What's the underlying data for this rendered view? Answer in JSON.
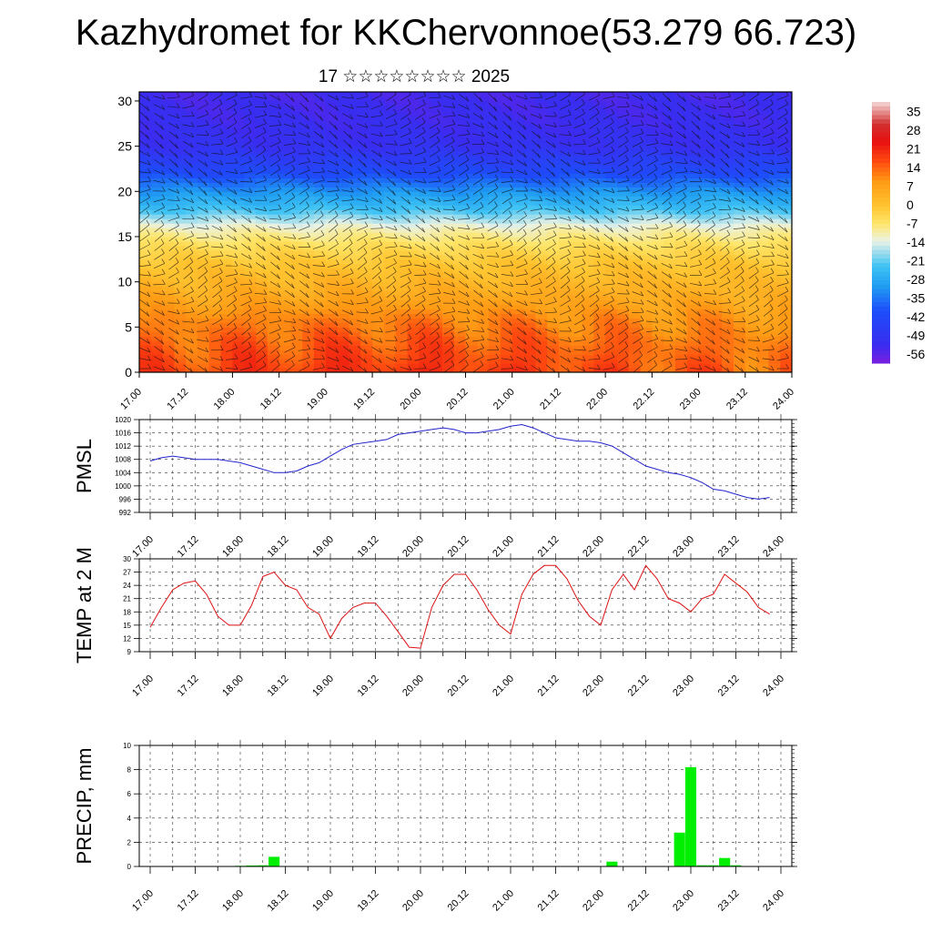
{
  "title": "Kazhydromet for KKChervonnoe(53.279 66.723)",
  "subtitle": "17 ☆☆☆☆☆☆☆☆ 2025",
  "time_labels": [
    "17.00",
    "17.12",
    "18.00",
    "18.12",
    "19.00",
    "19.12",
    "20.00",
    "20.12",
    "21.00",
    "21.12",
    "22.00",
    "22.12",
    "23.00",
    "23.12",
    "24.00"
  ],
  "colors": {
    "pmsl_line": "#2222cc",
    "temp_line": "#dd1111",
    "precip_bar": "#00ee00",
    "grid": "#333333"
  },
  "chart_data": [
    {
      "type": "heatmap",
      "title": "Kazhydromet for KKChervonnoe(53.279 66.723)",
      "subtitle": "17 ☆☆☆☆☆☆☆☆ 2025",
      "xlabel": "",
      "ylabel": "",
      "ylim": [
        0,
        31
      ],
      "yticks": [
        0,
        5,
        10,
        15,
        20,
        25,
        30
      ],
      "y_tick_labels": [
        "0",
        "5",
        "10",
        "15",
        "20",
        "25",
        "30"
      ],
      "x_categories": [
        "17.00",
        "17.12",
        "18.00",
        "18.12",
        "19.00",
        "19.12",
        "20.00",
        "20.12",
        "21.00",
        "21.12",
        "22.00",
        "22.12",
        "23.00",
        "23.12",
        "24.00"
      ],
      "colorbar": {
        "labels": [
          "35",
          "28",
          "21",
          "14",
          "7",
          "0",
          "-7",
          "-14",
          "-21",
          "-28",
          "-35",
          "-42",
          "-49",
          "-56"
        ],
        "range": [
          -63,
          42
        ],
        "stops": [
          {
            "v": -63,
            "c": "#7a1fe0"
          },
          {
            "v": -56,
            "c": "#3a2cf0"
          },
          {
            "v": -42,
            "c": "#1d4dfa"
          },
          {
            "v": -32,
            "c": "#1f9ef2"
          },
          {
            "v": -24,
            "c": "#3fc3f5"
          },
          {
            "v": -14,
            "c": "#e9f2e6"
          },
          {
            "v": -7,
            "c": "#ffe66a"
          },
          {
            "v": 0,
            "c": "#ffc530"
          },
          {
            "v": 10,
            "c": "#ff9a14"
          },
          {
            "v": 18,
            "c": "#ff4a10"
          },
          {
            "v": 26,
            "c": "#e81010"
          },
          {
            "v": 33,
            "c": "#d23030"
          },
          {
            "v": 42,
            "c": "#f4dada"
          }
        ]
      },
      "vertical_profile": [
        {
          "level": 0,
          "value": 18
        },
        {
          "level": 3,
          "value": 15
        },
        {
          "level": 6,
          "value": 11
        },
        {
          "level": 9,
          "value": 5
        },
        {
          "level": 12,
          "value": 0
        },
        {
          "level": 14,
          "value": -5
        },
        {
          "level": 16,
          "value": -12
        },
        {
          "level": 18,
          "value": -24
        },
        {
          "level": 20,
          "value": -33
        },
        {
          "level": 22,
          "value": -43
        },
        {
          "level": 25,
          "value": -54
        },
        {
          "level": 28,
          "value": -56
        },
        {
          "level": 31,
          "value": -57
        }
      ]
    },
    {
      "type": "line",
      "title": "",
      "ylabel": "PMSL",
      "xlabel": "",
      "ylim": [
        992,
        1020
      ],
      "yticks": [
        992,
        996,
        1000,
        1004,
        1008,
        1012,
        1016,
        1020
      ],
      "x": [
        0.0,
        0.25,
        0.5,
        0.75,
        1.0,
        1.25,
        1.5,
        1.75,
        2.0,
        2.25,
        2.5,
        2.75,
        3.0,
        3.25,
        3.5,
        3.75,
        4.0,
        4.25,
        4.5,
        4.75,
        5.0,
        5.25,
        5.5,
        5.75,
        6.0,
        6.25,
        6.5,
        6.75,
        7.0
      ],
      "x_tick_labels": [
        "17.00",
        "17.12",
        "18.00",
        "18.12",
        "19.00",
        "19.12",
        "20.00",
        "20.12",
        "21.00",
        "21.12",
        "22.00",
        "22.12",
        "23.00",
        "23.12",
        "24.00"
      ],
      "series": [
        {
          "values": [
            1007.5,
            1009,
            1008,
            1008,
            1007,
            1006,
            1004,
            1004.5,
            1007,
            1010,
            1013,
            1014,
            1016,
            1017,
            1017.5,
            1016,
            1017,
            1017,
            1018.5,
            1016,
            1014,
            1014,
            1012,
            1010,
            1006,
            1005,
            1004,
            1003,
            999
          ]
        }
      ],
      "x_plotted": [
        0.0,
        0.25,
        0.5,
        0.75,
        1.0,
        1.25,
        1.5,
        1.75,
        2.0,
        2.25,
        2.5,
        2.75,
        3.0,
        3.25,
        3.5,
        3.75,
        4.0,
        4.25,
        4.5,
        4.75,
        5.0,
        5.25,
        5.5,
        5.75,
        6.0,
        6.25,
        6.5,
        6.75,
        7.0,
        7.25,
        7.5,
        7.75,
        8.0,
        8.25,
        8.5,
        8.75,
        9.0,
        9.25,
        9.5,
        9.75,
        10.0,
        10.25,
        10.5,
        10.75,
        11.0,
        11.25,
        11.5,
        11.75,
        12.0,
        12.25,
        12.5,
        12.75,
        13.0,
        13.25,
        13.5,
        13.75
      ],
      "values_plotted": [
        1007.5,
        1008.5,
        1009,
        1008.5,
        1008,
        1008,
        1008,
        1007.5,
        1007,
        1006,
        1005,
        1004,
        1004,
        1004.5,
        1006,
        1007,
        1009,
        1011,
        1012.5,
        1013,
        1013.5,
        1014,
        1015.5,
        1016,
        1016.5,
        1017,
        1017.5,
        1017,
        1016,
        1016,
        1016.5,
        1017,
        1018,
        1018.5,
        1017.5,
        1016,
        1014.5,
        1014,
        1013.5,
        1013.5,
        1013,
        1012,
        1010,
        1008,
        1006,
        1005,
        1004,
        1003.5,
        1002.5,
        1001,
        999,
        998.5,
        997.5,
        996.5,
        996,
        996.5
      ]
    },
    {
      "type": "line",
      "title": "",
      "ylabel": "TEMP at 2 M",
      "xlabel": "",
      "ylim": [
        9,
        30
      ],
      "yticks": [
        9,
        12,
        15,
        18,
        21,
        24,
        27,
        30
      ],
      "x": [
        0.0,
        0.25,
        0.5,
        0.75,
        1.0,
        1.25,
        1.5,
        1.75,
        2.0,
        2.25,
        2.5,
        2.75,
        3.0,
        3.25,
        3.5,
        3.75,
        4.0,
        4.25,
        4.5,
        4.75,
        5.0,
        5.25,
        5.5,
        5.75,
        6.0,
        6.25,
        6.5,
        6.75,
        7.0,
        7.25,
        7.5,
        7.75,
        8.0,
        8.25,
        8.5,
        8.75,
        9.0,
        9.25,
        9.5,
        9.75,
        10.0,
        10.25,
        10.5,
        10.75,
        11.0,
        11.25,
        11.5,
        11.75,
        12.0,
        12.25,
        12.5,
        12.75,
        13.0,
        13.25,
        13.5,
        13.75
      ],
      "x_tick_labels": [
        "17.00",
        "17.12",
        "18.00",
        "18.12",
        "19.00",
        "19.12",
        "20.00",
        "20.12",
        "21.00",
        "21.12",
        "22.00",
        "22.12",
        "23.00",
        "23.12",
        "24.00"
      ],
      "series": [
        {
          "values": [
            14.5,
            19,
            23,
            24.5,
            25,
            22,
            17,
            15,
            15,
            19.5,
            26,
            27,
            24,
            23,
            19,
            17.5,
            12,
            16.5,
            19,
            20,
            20,
            17,
            13.5,
            10,
            9.8,
            19,
            24,
            26.5,
            26.5,
            23,
            18.5,
            15,
            13,
            22,
            26.5,
            28.5,
            28.5,
            25.5,
            20.5,
            17,
            15,
            23,
            26.5,
            23,
            28.5,
            25.5,
            21,
            20,
            18,
            21,
            22,
            26.5,
            24.5,
            22.5,
            19,
            17.5
          ]
        }
      ]
    },
    {
      "type": "bar",
      "title": "",
      "ylabel": "PRECIP, mm",
      "xlabel": "",
      "ylim": [
        0,
        10
      ],
      "yticks": [
        0,
        2,
        4,
        6,
        8,
        10
      ],
      "x": [
        0.0,
        0.25,
        0.5,
        0.75,
        1.0,
        1.25,
        1.5,
        1.75,
        2.0,
        2.25,
        2.5,
        2.75,
        3.0,
        3.25,
        3.5,
        3.75,
        4.0,
        4.25,
        4.5,
        4.75,
        5.0,
        5.25,
        5.5,
        5.75,
        6.0,
        6.25,
        6.5,
        6.75,
        7.0,
        7.25,
        7.5,
        7.75,
        8.0,
        8.25,
        8.5,
        8.75,
        9.0,
        9.25,
        9.5,
        9.75,
        10.0,
        10.25,
        10.5,
        10.75,
        11.0,
        11.25,
        11.5,
        11.75,
        12.0,
        12.25,
        12.5,
        12.75,
        13.0,
        13.25,
        13.5,
        13.75
      ],
      "x_tick_labels": [
        "17.00",
        "17.12",
        "18.00",
        "18.12",
        "19.00",
        "19.12",
        "20.00",
        "20.12",
        "21.00",
        "21.12",
        "22.00",
        "22.12",
        "23.00",
        "23.12",
        "24.00"
      ],
      "series": [
        {
          "values": [
            0,
            0,
            0,
            0,
            0,
            0,
            0,
            0,
            0.05,
            0.08,
            0.1,
            0.8,
            0,
            0,
            0,
            0,
            0,
            0,
            0,
            0,
            0,
            0,
            0,
            0,
            0,
            0,
            0,
            0,
            0,
            0,
            0,
            0,
            0,
            0,
            0,
            0,
            0,
            0,
            0,
            0,
            0,
            0.4,
            0,
            0,
            0,
            0,
            0,
            2.8,
            8.2,
            0.1,
            0.1,
            0.7,
            0.1,
            0,
            0,
            0
          ]
        }
      ]
    }
  ]
}
